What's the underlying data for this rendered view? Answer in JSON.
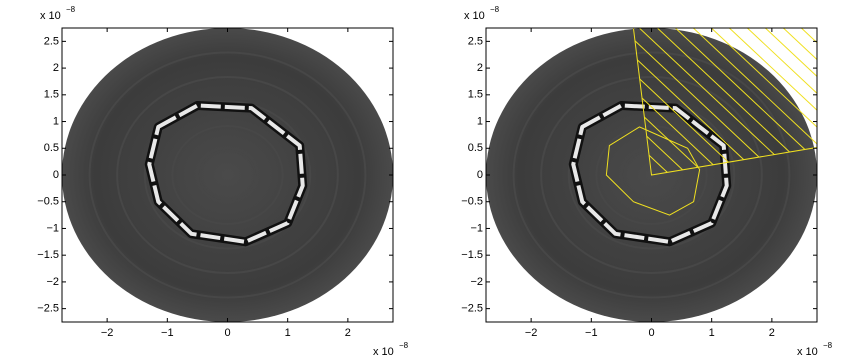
{
  "chart_data": [
    {
      "type": "image",
      "xlim": [
        -2.75,
        2.75
      ],
      "ylim": [
        -2.75,
        2.75
      ],
      "xticks": [
        {
          "value": -2,
          "label": "−2"
        },
        {
          "value": -1,
          "label": "−1"
        },
        0,
        1,
        2
      ],
      "yticks": [
        {
          "value": -2.5,
          "label": "−2.5"
        },
        {
          "value": -2,
          "label": "−2"
        },
        {
          "value": -1.5,
          "label": "−1.5"
        },
        {
          "value": -1,
          "label": "−1"
        },
        {
          "value": -0.5,
          "label": "−0.5"
        },
        0,
        0.5,
        1,
        1.5,
        2,
        2.5
      ],
      "x_multiplier": "x 10",
      "x_exponent": "−8",
      "y_multiplier": "x 10",
      "y_exponent": "−8"
    },
    {
      "type": "image",
      "xlim": [
        -2.75,
        2.75
      ],
      "ylim": [
        -2.75,
        2.75
      ],
      "xticks": [
        {
          "value": -2,
          "label": "−2"
        },
        {
          "value": -1,
          "label": "−1"
        },
        0,
        1,
        2
      ],
      "yticks": [
        {
          "value": -2.5,
          "label": "−2.5"
        },
        {
          "value": -2,
          "label": "−2"
        },
        {
          "value": -1.5,
          "label": "−1.5"
        },
        {
          "value": -1,
          "label": "−1"
        },
        {
          "value": -0.5,
          "label": "−0.5"
        },
        0,
        0.5,
        1,
        1.5,
        2,
        2.5
      ],
      "x_multiplier": "x 10",
      "x_exponent": "−8",
      "y_multiplier": "x 10",
      "y_exponent": "−8",
      "overlay_color": "#f0e020"
    }
  ]
}
